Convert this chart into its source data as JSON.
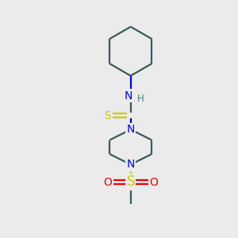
{
  "background_color": "#ebebeb",
  "bond_color": "#3a5a5a",
  "N_color": "#0000ee",
  "S_thio_color": "#cccc00",
  "S_sulfonyl_color": "#cccc00",
  "O_color": "#ee0000",
  "H_color": "#408080",
  "line_width": 1.6,
  "figsize": [
    3.0,
    3.0
  ],
  "dpi": 100,
  "xlim": [
    0,
    10
  ],
  "ylim": [
    0,
    10
  ]
}
